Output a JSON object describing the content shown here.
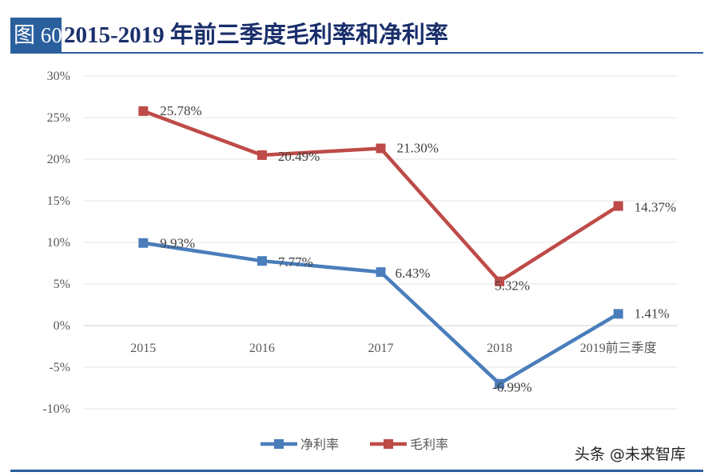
{
  "header": {
    "figure_label": "图 60:",
    "title": "2015-2019 年前三季度毛利率和净利率"
  },
  "watermark": "头条 @未来智库",
  "chart_data": {
    "type": "line",
    "title": "2015-2019 年前三季度毛利率和净利率",
    "categories": [
      "2015",
      "2016",
      "2017",
      "2018",
      "2019前三季度"
    ],
    "ylim": [
      -10,
      30
    ],
    "yticks": [
      "-10%",
      "-5%",
      "0%",
      "5%",
      "10%",
      "15%",
      "20%",
      "25%",
      "30%"
    ],
    "grid": true,
    "legend": "bottom",
    "series": [
      {
        "name": "净利率",
        "color": "#4a7ebb",
        "values": [
          9.93,
          7.77,
          6.43,
          -6.99,
          1.41
        ],
        "labels": [
          "9.93%",
          "7.77%",
          "6.43%",
          "-6.99%",
          "1.41%"
        ]
      },
      {
        "name": "毛利率",
        "color": "#be4b48",
        "values": [
          25.78,
          20.49,
          21.3,
          5.32,
          14.37
        ],
        "labels": [
          "25.78%",
          "20.49%",
          "21.30%",
          "5.32%",
          "14.37%"
        ]
      }
    ]
  }
}
